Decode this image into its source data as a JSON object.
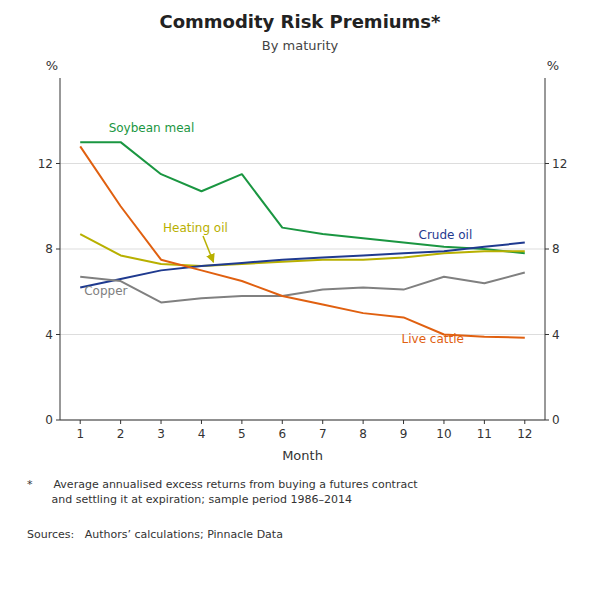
{
  "chart_data": {
    "type": "line",
    "title": "Commodity Risk Premiums*",
    "subtitle": "By maturity",
    "xlabel": "Month",
    "ylabel": "%",
    "y2label": "%",
    "footnotes": [
      "*      Average annualised excess returns from buying a futures contract\n       and settling it at expiration; sample period 1986–2014",
      "Sources:   Authors’ calculations; Pinnacle Data"
    ],
    "x": [
      1,
      2,
      3,
      4,
      5,
      6,
      7,
      8,
      9,
      10,
      11,
      12
    ],
    "series": [
      {
        "name": "Soybean meal",
        "color": "#1a9641",
        "values": [
          13.0,
          13.0,
          11.5,
          10.7,
          11.5,
          9.0,
          8.7,
          8.5,
          8.3,
          8.1,
          8.0,
          7.8
        ]
      },
      {
        "name": "Heating oil",
        "color": "#b8b000",
        "values": [
          8.7,
          7.7,
          7.3,
          7.2,
          7.3,
          7.4,
          7.5,
          7.5,
          7.6,
          7.8,
          7.9,
          7.9
        ]
      },
      {
        "name": "Crude oil",
        "color": "#1f3a8f",
        "values": [
          6.2,
          6.6,
          7.0,
          7.2,
          7.35,
          7.5,
          7.6,
          7.7,
          7.8,
          7.9,
          8.1,
          8.3
        ]
      },
      {
        "name": "Copper",
        "color": "#808080",
        "values": [
          6.7,
          6.5,
          5.5,
          5.7,
          5.8,
          5.8,
          6.1,
          6.2,
          6.1,
          6.7,
          6.4,
          6.9
        ]
      },
      {
        "name": "Live cattle",
        "color": "#e06010",
        "values": [
          12.8,
          10.0,
          7.5,
          7.0,
          6.5,
          5.8,
          5.4,
          5.0,
          4.8,
          4.0,
          3.9,
          3.85
        ]
      }
    ],
    "xlim": [
      0.5,
      12.5
    ],
    "xticks": [
      1,
      2,
      3,
      4,
      5,
      6,
      7,
      8,
      9,
      10,
      11,
      12
    ],
    "ylim": [
      0,
      16
    ],
    "yticks": [
      0,
      4,
      8,
      12
    ],
    "y2lim": [
      0,
      16
    ],
    "y2ticks": [
      0,
      4,
      8,
      12
    ],
    "grid": true
  }
}
